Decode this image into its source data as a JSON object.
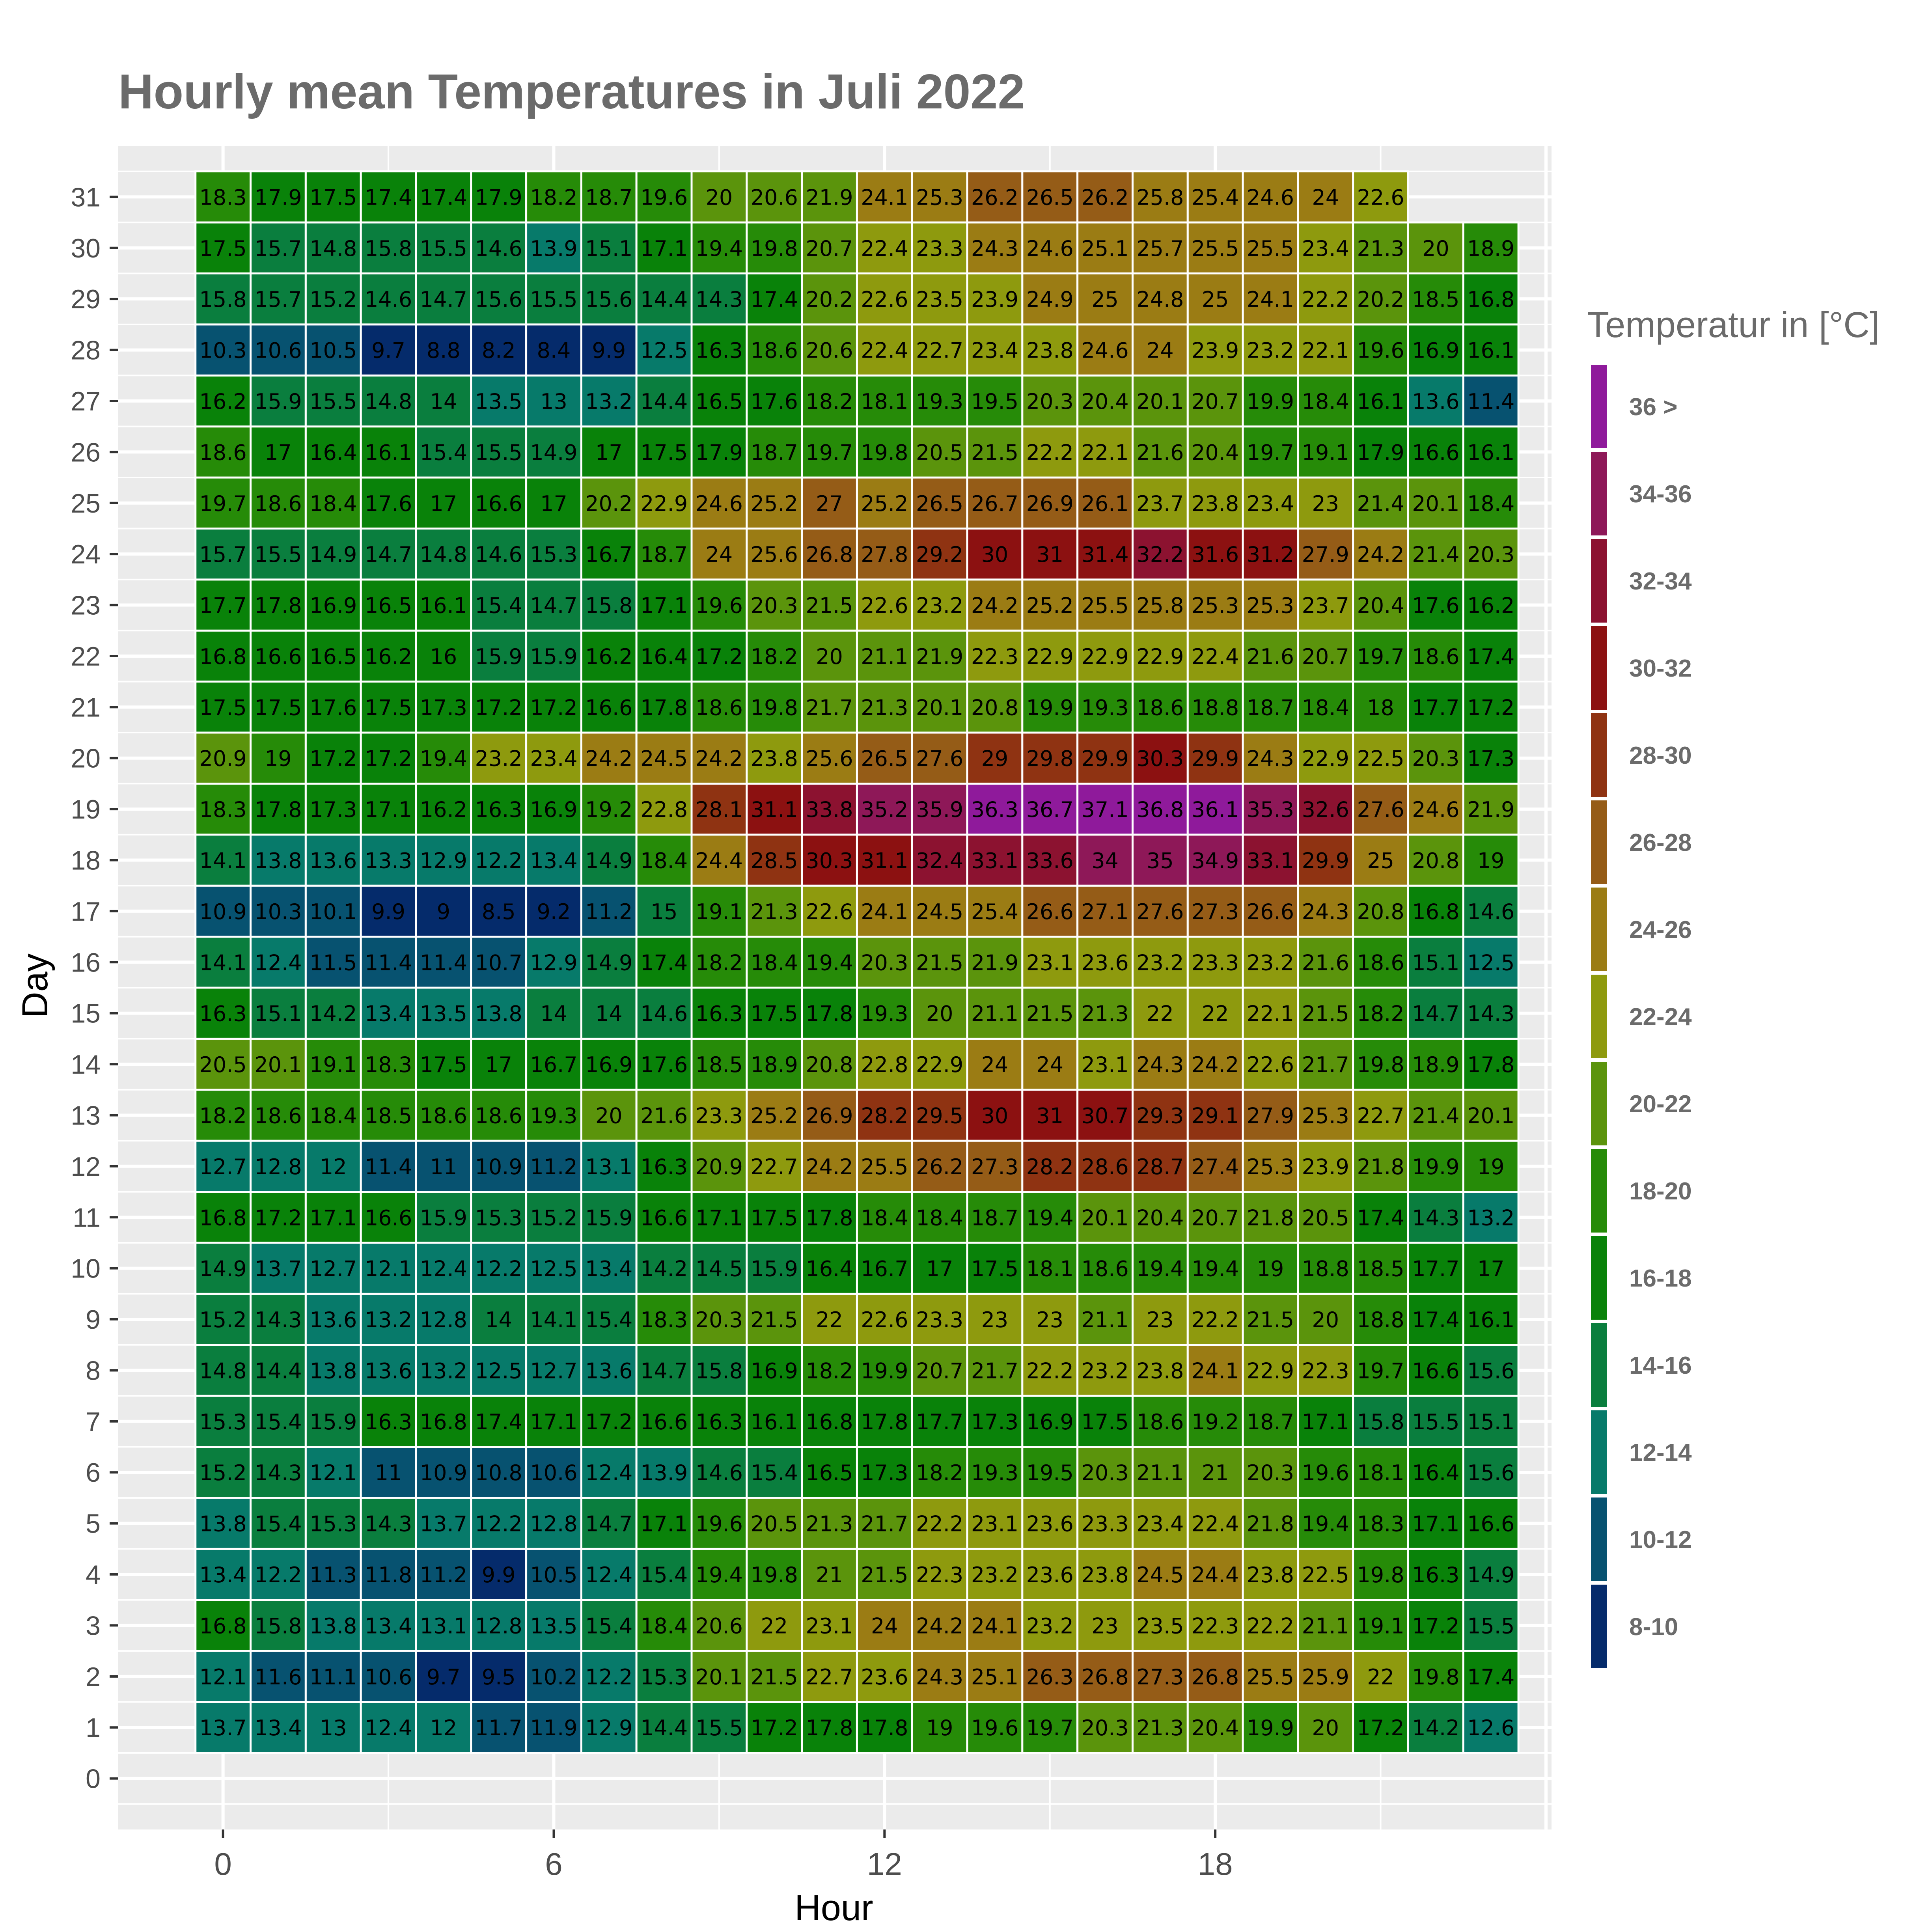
{
  "chart_data": {
    "type": "heatmap",
    "title": "Hourly mean Temperatures in Juli 2022",
    "xlabel": "Hour",
    "ylabel": "Day",
    "x_ticks": [
      "0",
      "6",
      "12",
      "18"
    ],
    "y_ticks": [
      "0",
      "1",
      "2",
      "3",
      "4",
      "5",
      "6",
      "7",
      "8",
      "9",
      "10",
      "11",
      "12",
      "13",
      "14",
      "15",
      "16",
      "17",
      "18",
      "19",
      "20",
      "21",
      "22",
      "23",
      "24",
      "25",
      "26",
      "27",
      "28",
      "29",
      "30",
      "31"
    ],
    "xlim": [
      -1.9,
      24.1
    ],
    "ylim": [
      -1,
      32
    ],
    "hours": [
      0,
      1,
      2,
      3,
      4,
      5,
      6,
      7,
      8,
      9,
      10,
      11,
      12,
      13,
      14,
      15,
      16,
      17,
      18,
      19,
      20,
      21,
      22,
      23
    ],
    "days": [
      1,
      2,
      3,
      4,
      5,
      6,
      7,
      8,
      9,
      10,
      11,
      12,
      13,
      14,
      15,
      16,
      17,
      18,
      19,
      20,
      21,
      22,
      23,
      24,
      25,
      26,
      27,
      28,
      29,
      30,
      31
    ],
    "values": [
      [
        13.7,
        13.4,
        13,
        12.4,
        12,
        11.7,
        11.9,
        12.9,
        14.4,
        15.5,
        17.2,
        17.8,
        17.8,
        19,
        19.6,
        19.7,
        20.3,
        21.3,
        20.4,
        19.9,
        20,
        17.2,
        14.2,
        12.6
      ],
      [
        12.1,
        11.6,
        11.1,
        10.6,
        9.7,
        9.5,
        10.2,
        12.2,
        15.3,
        20.1,
        21.5,
        22.7,
        23.6,
        24.3,
        25.1,
        26.3,
        26.8,
        27.3,
        26.8,
        25.5,
        25.9,
        22,
        19.8,
        17.4
      ],
      [
        16.8,
        15.8,
        13.8,
        13.4,
        13.1,
        12.8,
        13.5,
        15.4,
        18.4,
        20.6,
        22,
        23.1,
        24,
        24.2,
        24.1,
        23.2,
        23,
        23.5,
        22.3,
        22.2,
        21.1,
        19.1,
        17.2,
        15.5
      ],
      [
        13.4,
        12.2,
        11.3,
        11.8,
        11.2,
        9.9,
        10.5,
        12.4,
        15.4,
        19.4,
        19.8,
        21,
        21.5,
        22.3,
        23.2,
        23.6,
        23.8,
        24.5,
        24.4,
        23.8,
        22.5,
        19.8,
        16.3,
        14.9
      ],
      [
        13.8,
        15.4,
        15.3,
        14.3,
        13.7,
        12.2,
        12.8,
        14.7,
        17.1,
        19.6,
        20.5,
        21.3,
        21.7,
        22.2,
        23.1,
        23.6,
        23.3,
        23.4,
        22.4,
        21.8,
        19.4,
        18.3,
        17.1,
        16.6
      ],
      [
        15.2,
        14.3,
        12.1,
        11,
        10.9,
        10.8,
        10.6,
        12.4,
        13.9,
        14.6,
        15.4,
        16.5,
        17.3,
        18.2,
        19.3,
        19.5,
        20.3,
        21.1,
        21,
        20.3,
        19.6,
        18.1,
        16.4,
        15.6
      ],
      [
        15.3,
        15.4,
        15.9,
        16.3,
        16.8,
        17.4,
        17.1,
        17.2,
        16.6,
        16.3,
        16.1,
        16.8,
        17.8,
        17.7,
        17.3,
        16.9,
        17.5,
        18.6,
        19.2,
        18.7,
        17.1,
        15.8,
        15.5,
        15.1
      ],
      [
        14.8,
        14.4,
        13.8,
        13.6,
        13.2,
        12.5,
        12.7,
        13.6,
        14.7,
        15.8,
        16.9,
        18.2,
        19.9,
        20.7,
        21.7,
        22.2,
        23.2,
        23.8,
        24.1,
        22.9,
        22.3,
        19.7,
        16.6,
        15.6
      ],
      [
        15.2,
        14.3,
        13.6,
        13.2,
        12.8,
        14,
        14.1,
        15.4,
        18.3,
        20.3,
        21.5,
        22,
        22.6,
        23.3,
        23,
        23,
        21.1,
        23,
        22.2,
        21.5,
        20,
        18.8,
        17.4,
        16.1
      ],
      [
        14.9,
        13.7,
        12.7,
        12.1,
        12.4,
        12.2,
        12.5,
        13.4,
        14.2,
        14.5,
        15.9,
        16.4,
        16.7,
        17,
        17.5,
        18.1,
        18.6,
        19.4,
        19.4,
        19,
        18.8,
        18.5,
        17.7,
        17
      ],
      [
        16.8,
        17.2,
        17.1,
        16.6,
        15.9,
        15.3,
        15.2,
        15.9,
        16.6,
        17.1,
        17.5,
        17.8,
        18.4,
        18.4,
        18.7,
        19.4,
        20.1,
        20.4,
        20.7,
        21.8,
        20.5,
        17.4,
        14.3,
        13.2
      ],
      [
        12.7,
        12.8,
        12,
        11.4,
        11,
        10.9,
        11.2,
        13.1,
        16.3,
        20.9,
        22.7,
        24.2,
        25.5,
        26.2,
        27.3,
        28.2,
        28.6,
        28.7,
        27.4,
        25.3,
        23.9,
        21.8,
        19.9,
        19
      ],
      [
        18.2,
        18.6,
        18.4,
        18.5,
        18.6,
        18.6,
        19.3,
        20,
        21.6,
        23.3,
        25.2,
        26.9,
        28.2,
        29.5,
        30,
        31,
        30.7,
        29.3,
        29.1,
        27.9,
        25.3,
        22.7,
        21.4,
        20.1
      ],
      [
        20.5,
        20.1,
        19.1,
        18.3,
        17.5,
        17,
        16.7,
        16.9,
        17.6,
        18.5,
        18.9,
        20.8,
        22.8,
        22.9,
        24,
        24,
        23.1,
        24.3,
        24.2,
        22.6,
        21.7,
        19.8,
        18.9,
        17.8
      ],
      [
        16.3,
        15.1,
        14.2,
        13.4,
        13.5,
        13.8,
        14,
        14,
        14.6,
        16.3,
        17.5,
        17.8,
        19.3,
        20,
        21.1,
        21.5,
        21.3,
        22,
        22,
        22.1,
        21.5,
        18.2,
        14.7,
        14.3
      ],
      [
        14.1,
        12.4,
        11.5,
        11.4,
        11.4,
        10.7,
        12.9,
        14.9,
        17.4,
        18.2,
        18.4,
        19.4,
        20.3,
        21.5,
        21.9,
        23.1,
        23.6,
        23.2,
        23.3,
        23.2,
        21.6,
        18.6,
        15.1,
        12.5
      ],
      [
        10.9,
        10.3,
        10.1,
        9.9,
        9,
        8.5,
        9.2,
        11.2,
        15,
        19.1,
        21.3,
        22.6,
        24.1,
        24.5,
        25.4,
        26.6,
        27.1,
        27.6,
        27.3,
        26.6,
        24.3,
        20.8,
        16.8,
        14.6
      ],
      [
        14.1,
        13.8,
        13.6,
        13.3,
        12.9,
        12.2,
        13.4,
        14.9,
        18.4,
        24.4,
        28.5,
        30.3,
        31.1,
        32.4,
        33.1,
        33.6,
        34,
        35,
        34.9,
        33.1,
        29.9,
        25,
        20.8,
        19
      ],
      [
        18.3,
        17.8,
        17.3,
        17.1,
        16.2,
        16.3,
        16.9,
        19.2,
        22.8,
        28.1,
        31.1,
        33.8,
        35.2,
        35.9,
        36.3,
        36.7,
        37.1,
        36.8,
        36.1,
        35.3,
        32.6,
        27.6,
        24.6,
        21.9
      ],
      [
        20.9,
        19,
        17.2,
        17.2,
        19.4,
        23.2,
        23.4,
        24.2,
        24.5,
        24.2,
        23.8,
        25.6,
        26.5,
        27.6,
        29,
        29.8,
        29.9,
        30.3,
        29.9,
        24.3,
        22.9,
        22.5,
        20.3,
        17.3
      ],
      [
        17.5,
        17.5,
        17.6,
        17.5,
        17.3,
        17.2,
        17.2,
        16.6,
        17.8,
        18.6,
        19.8,
        21.7,
        21.3,
        20.1,
        20.8,
        19.9,
        19.3,
        18.6,
        18.8,
        18.7,
        18.4,
        18,
        17.7,
        17.2
      ],
      [
        16.8,
        16.6,
        16.5,
        16.2,
        16,
        15.9,
        15.9,
        16.2,
        16.4,
        17.2,
        18.2,
        20,
        21.1,
        21.9,
        22.3,
        22.9,
        22.9,
        22.9,
        22.4,
        21.6,
        20.7,
        19.7,
        18.6,
        17.4
      ],
      [
        17.7,
        17.8,
        16.9,
        16.5,
        16.1,
        15.4,
        14.7,
        15.8,
        17.1,
        19.6,
        20.3,
        21.5,
        22.6,
        23.2,
        24.2,
        25.2,
        25.5,
        25.8,
        25.3,
        25.3,
        23.7,
        20.4,
        17.6,
        16.2
      ],
      [
        15.7,
        15.5,
        14.9,
        14.7,
        14.8,
        14.6,
        15.3,
        16.7,
        18.7,
        24,
        25.6,
        26.8,
        27.8,
        29.2,
        30,
        31,
        31.4,
        32.2,
        31.6,
        31.2,
        27.9,
        24.2,
        21.4,
        20.3
      ],
      [
        19.7,
        18.6,
        18.4,
        17.6,
        17,
        16.6,
        17,
        20.2,
        22.9,
        24.6,
        25.2,
        27,
        25.2,
        26.5,
        26.7,
        26.9,
        26.1,
        23.7,
        23.8,
        23.4,
        23,
        21.4,
        20.1,
        18.4
      ],
      [
        18.6,
        17,
        16.4,
        16.1,
        15.4,
        15.5,
        14.9,
        17,
        17.5,
        17.9,
        18.7,
        19.7,
        19.8,
        20.5,
        21.5,
        22.2,
        22.1,
        21.6,
        20.4,
        19.7,
        19.1,
        17.9,
        16.6,
        16.1
      ],
      [
        16.2,
        15.9,
        15.5,
        14.8,
        14,
        13.5,
        13,
        13.2,
        14.4,
        16.5,
        17.6,
        18.2,
        18.1,
        19.3,
        19.5,
        20.3,
        20.4,
        20.1,
        20.7,
        19.9,
        18.4,
        16.1,
        13.6,
        11.4
      ],
      [
        10.3,
        10.6,
        10.5,
        9.7,
        8.8,
        8.2,
        8.4,
        9.9,
        12.5,
        16.3,
        18.6,
        20.6,
        22.4,
        22.7,
        23.4,
        23.8,
        24.6,
        24,
        23.9,
        23.2,
        22.1,
        19.6,
        16.9,
        16.1
      ],
      [
        15.8,
        15.7,
        15.2,
        14.6,
        14.7,
        15.6,
        15.5,
        15.6,
        14.4,
        14.3,
        17.4,
        20.2,
        22.6,
        23.5,
        23.9,
        24.9,
        25,
        24.8,
        25,
        24.1,
        22.2,
        20.2,
        18.5,
        16.8
      ],
      [
        17.5,
        15.7,
        14.8,
        15.8,
        15.5,
        14.6,
        13.9,
        15.1,
        17.1,
        19.4,
        19.8,
        20.7,
        22.4,
        23.3,
        24.3,
        24.6,
        25.1,
        25.7,
        25.5,
        25.5,
        23.4,
        21.3,
        20,
        18.9
      ],
      [
        18.3,
        17.9,
        17.5,
        17.4,
        17.4,
        17.9,
        18.2,
        18.7,
        19.6,
        20,
        20.6,
        21.9,
        24.1,
        25.3,
        26.2,
        26.5,
        26.2,
        25.8,
        25.4,
        24.6,
        24,
        22.6,
        null,
        null
      ]
    ],
    "legend": {
      "title": "Temperatur in [°C]",
      "bins": [
        {
          "label": "36 >",
          "min": 36,
          "max": 99,
          "color": "#8f1a9b"
        },
        {
          "label": "34-36",
          "min": 34,
          "max": 36,
          "color": "#8e1858"
        },
        {
          "label": "32-34",
          "min": 32,
          "max": 34,
          "color": "#8c1230"
        },
        {
          "label": "30-32",
          "min": 30,
          "max": 32,
          "color": "#8c1111"
        },
        {
          "label": "28-30",
          "min": 28,
          "max": 30,
          "color": "#8f3312"
        },
        {
          "label": "26-28",
          "min": 26,
          "max": 28,
          "color": "#955c17"
        },
        {
          "label": "24-26",
          "min": 24,
          "max": 26,
          "color": "#9b7c14"
        },
        {
          "label": "22-24",
          "min": 22,
          "max": 24,
          "color": "#8e9a0e"
        },
        {
          "label": "20-22",
          "min": 20,
          "max": 22,
          "color": "#5b940c"
        },
        {
          "label": "18-20",
          "min": 18,
          "max": 20,
          "color": "#268b08"
        },
        {
          "label": "16-18",
          "min": 16,
          "max": 18,
          "color": "#098209"
        },
        {
          "label": "14-16",
          "min": 14,
          "max": 16,
          "color": "#0a7e3e"
        },
        {
          "label": "12-14",
          "min": 12,
          "max": 14,
          "color": "#077a6a"
        },
        {
          "label": "10-12",
          "min": 10,
          "max": 12,
          "color": "#075270"
        },
        {
          "label": "8-10",
          "min": 0,
          "max": 10,
          "color": "#052b6b"
        }
      ]
    },
    "colors": {
      "panel_background": "#ebebeb",
      "grid": "#ffffff",
      "tile_border": "#ffffff"
    }
  }
}
